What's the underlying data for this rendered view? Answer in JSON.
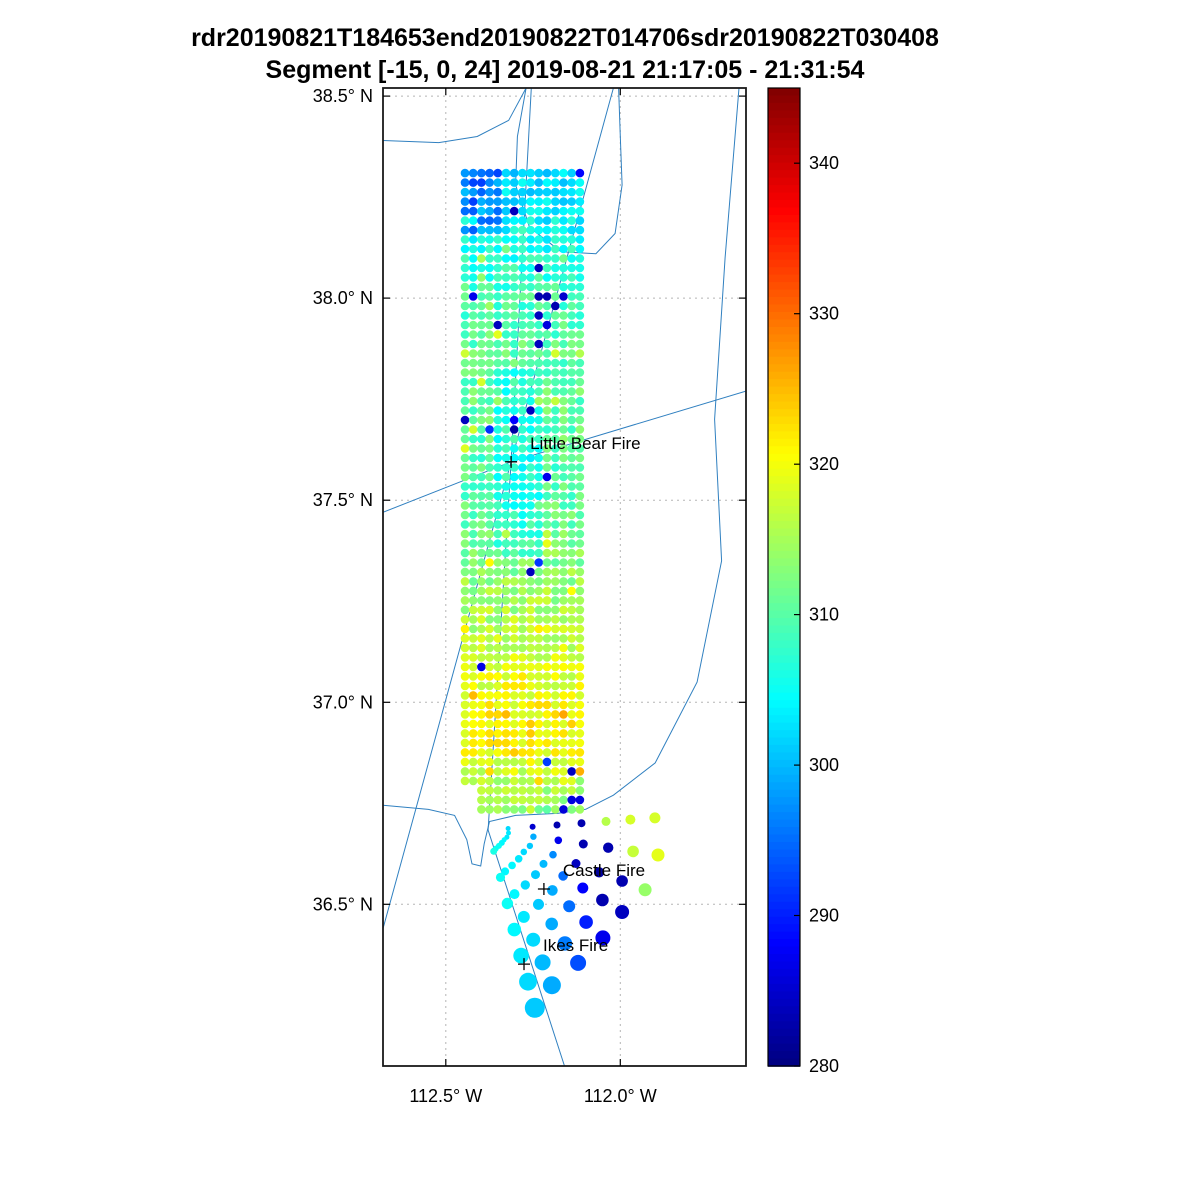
{
  "chart_data": {
    "type": "scatter",
    "title_line1": "rdr20190821T184653end20190822T014706sdr20190822T030408",
    "title_line2": "Segment [-15, 0, 24] 2019-08-21 21:17:05 - 21:31:54",
    "xlabel": "",
    "ylabel": "",
    "grid": true,
    "lon_range": [
      -112.68,
      -111.64
    ],
    "lat_range": [
      36.1,
      38.52
    ],
    "x_ticks": [
      {
        "lon": -112.5,
        "label": "112.5° W"
      },
      {
        "lon": -112.0,
        "label": "112.0° W"
      }
    ],
    "y_ticks": [
      {
        "lat": 38.5,
        "label": "38.5° N"
      },
      {
        "lat": 38.0,
        "label": "38.0° N"
      },
      {
        "lat": 37.5,
        "label": "37.5° N"
      },
      {
        "lat": 37.0,
        "label": "37.0° N"
      },
      {
        "lat": 36.5,
        "label": "36.5° N"
      }
    ],
    "colorbar": {
      "min": 280,
      "max": 345,
      "colormap": "jet",
      "ticks": [
        340,
        330,
        320,
        310,
        300,
        290,
        280
      ],
      "legend_position": "right"
    },
    "fires": [
      {
        "name": "Little Bear Fire",
        "lon": -112.313,
        "lat": 37.595
      },
      {
        "name": "Castle Fire",
        "lon": -112.219,
        "lat": 36.538
      },
      {
        "name": "Ikes Fire",
        "lon": -112.276,
        "lat": 36.352
      }
    ],
    "swath": {
      "lon_min": -112.445,
      "lon_max": -112.115,
      "lat_min": 36.735,
      "lat_max": 38.305,
      "step": 0.0235,
      "dot_radius": 4.3,
      "noise_amp": 6,
      "lat_profile": [
        [
          36.735,
          313
        ],
        [
          36.8,
          316
        ],
        [
          36.87,
          319.5
        ],
        [
          36.95,
          321
        ],
        [
          37.05,
          319
        ],
        [
          37.18,
          316
        ],
        [
          37.32,
          313.5
        ],
        [
          37.45,
          311
        ],
        [
          37.6,
          309.5
        ],
        [
          37.75,
          311
        ],
        [
          37.92,
          310
        ],
        [
          38.02,
          308.5
        ],
        [
          38.12,
          306
        ],
        [
          38.22,
          303.5
        ],
        [
          38.305,
          302.5
        ]
      ],
      "cool_patch": {
        "lat_min": 38.15,
        "lon_max": -112.33,
        "delta": -6
      },
      "cool_streak": {
        "lon_min": -112.37,
        "lon_max": -112.23,
        "lat_min": 37.35,
        "lat_max": 37.82,
        "delta": -3.5
      },
      "notch": {
        "lat_max": 36.79,
        "lon_max": -112.4
      },
      "cold_spots": [
        [
          -112.3,
          38.225,
          0.013,
          284
        ],
        [
          -112.43,
          38.0,
          0.012,
          287
        ],
        [
          -112.345,
          37.945,
          0.013,
          284
        ],
        [
          -112.225,
          38.0,
          0.02,
          283
        ],
        [
          -112.185,
          37.975,
          0.016,
          283
        ],
        [
          -112.165,
          38.01,
          0.012,
          285
        ],
        [
          -112.24,
          37.955,
          0.013,
          284
        ],
        [
          -112.24,
          37.885,
          0.014,
          284
        ],
        [
          -112.2,
          37.93,
          0.012,
          286
        ],
        [
          -112.13,
          36.82,
          0.015,
          284
        ],
        [
          -112.125,
          36.755,
          0.016,
          286
        ]
      ],
      "warm_spots": [
        [
          -112.33,
          36.97,
          0.02,
          325
        ],
        [
          -112.26,
          36.93,
          0.018,
          324
        ],
        [
          -112.22,
          37.0,
          0.016,
          323
        ],
        [
          -112.37,
          36.9,
          0.014,
          323
        ],
        [
          -112.29,
          37.05,
          0.018,
          322
        ],
        [
          -112.31,
          36.875,
          0.012,
          324
        ]
      ]
    },
    "plume": {
      "origin": [
        -112.379,
        36.684
      ],
      "t0": 0.12,
      "fingers": [
        {
          "end": [
            -111.901,
            36.714
          ],
          "r0": 2.5,
          "r1": 5.5,
          "values": [
            302,
            285,
            283,
            283,
            316,
            318,
            318
          ]
        },
        {
          "end": [
            -111.892,
            36.622
          ],
          "r0": 2.5,
          "r1": 6.5,
          "values": [
            303,
            299,
            287,
            283,
            283,
            317,
            319
          ]
        },
        {
          "end": [
            -111.929,
            36.536
          ],
          "r0": 2.5,
          "r1": 6.5,
          "values": [
            303,
            301,
            297,
            284,
            282,
            283,
            314
          ]
        },
        {
          "end": [
            -111.995,
            36.481
          ],
          "r0": 2.5,
          "r1": 7.0,
          "values": [
            304,
            302,
            300,
            295,
            288,
            283,
            284
          ]
        },
        {
          "end": [
            -112.05,
            36.417
          ],
          "r0": 3.0,
          "r1": 7.5,
          "values": [
            304,
            303,
            301,
            299,
            295,
            290,
            287
          ]
        },
        {
          "end": [
            -112.121,
            36.355
          ],
          "r0": 3.0,
          "r1": 8.0,
          "values": [
            305,
            304,
            302,
            301,
            299,
            296,
            293
          ]
        },
        {
          "end": [
            -112.196,
            36.3
          ],
          "r0": 3.0,
          "r1": 9.0,
          "values": [
            305,
            304,
            304,
            303,
            302,
            300,
            299
          ]
        },
        {
          "end": [
            -112.245,
            36.244
          ],
          "r0": 3.5,
          "r1": 10.0,
          "values": [
            306,
            305,
            305,
            304,
            303,
            302,
            301
          ]
        }
      ]
    },
    "boundaries": [
      [
        [
          -112.27,
          38.52
        ],
        [
          -112.295,
          38.4
        ],
        [
          -112.3,
          38.28
        ],
        [
          -112.26,
          38.175
        ],
        [
          -112.17,
          38.115
        ],
        [
          -112.07,
          38.11
        ],
        [
          -112.015,
          38.16
        ],
        [
          -111.995,
          38.28
        ],
        [
          -112.0,
          38.4
        ],
        [
          -112.005,
          38.52
        ]
      ],
      [
        [
          -112.27,
          38.52
        ],
        [
          -112.32,
          38.44
        ],
        [
          -112.41,
          38.4
        ],
        [
          -112.52,
          38.385
        ],
        [
          -112.68,
          38.39
        ]
      ],
      [
        [
          -112.255,
          38.52
        ],
        [
          -112.313,
          37.595
        ],
        [
          -112.379,
          36.684
        ],
        [
          -112.16,
          36.1
        ]
      ],
      [
        [
          -112.02,
          38.52
        ],
        [
          -112.313,
          37.595
        ],
        [
          -112.68,
          36.44
        ]
      ],
      [
        [
          -112.313,
          37.595
        ],
        [
          -111.64,
          37.77
        ]
      ],
      [
        [
          -112.313,
          37.595
        ],
        [
          -112.68,
          37.47
        ]
      ],
      [
        [
          -111.66,
          38.52
        ],
        [
          -111.7,
          38.1
        ],
        [
          -111.73,
          37.7
        ],
        [
          -111.71,
          37.35
        ],
        [
          -111.78,
          37.05
        ],
        [
          -111.9,
          36.85
        ],
        [
          -112.02,
          36.77
        ],
        [
          -112.1,
          36.735
        ]
      ],
      [
        [
          -112.68,
          36.745
        ],
        [
          -112.55,
          36.735
        ],
        [
          -112.475,
          36.72
        ],
        [
          -112.44,
          36.66
        ],
        [
          -112.425,
          36.6
        ],
        [
          -112.4,
          36.595
        ],
        [
          -112.39,
          36.65
        ],
        [
          -112.375,
          36.705
        ],
        [
          -112.3,
          36.72
        ],
        [
          -112.18,
          36.725
        ],
        [
          -112.1,
          36.735
        ]
      ]
    ],
    "style": {
      "boundary_color": "#3080c0",
      "grid_color": "#b5b5b5",
      "axis_color": "#1a1a1a",
      "marker_color": "#000000"
    }
  }
}
